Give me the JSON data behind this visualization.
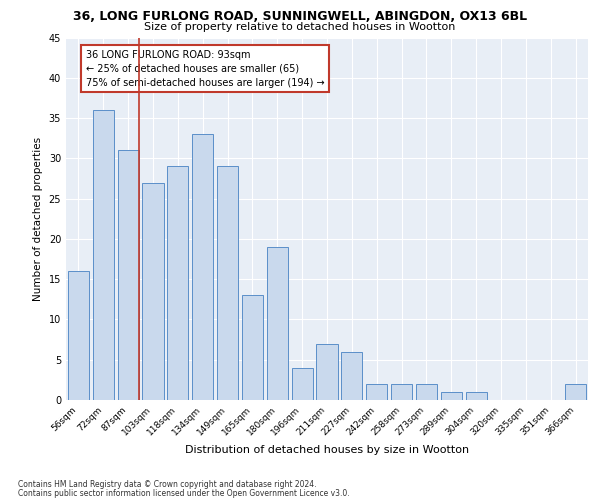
{
  "title": "36, LONG FURLONG ROAD, SUNNINGWELL, ABINGDON, OX13 6BL",
  "subtitle": "Size of property relative to detached houses in Wootton",
  "xlabel": "Distribution of detached houses by size in Wootton",
  "ylabel": "Number of detached properties",
  "categories": [
    "56sqm",
    "72sqm",
    "87sqm",
    "103sqm",
    "118sqm",
    "134sqm",
    "149sqm",
    "165sqm",
    "180sqm",
    "196sqm",
    "211sqm",
    "227sqm",
    "242sqm",
    "258sqm",
    "273sqm",
    "289sqm",
    "304sqm",
    "320sqm",
    "335sqm",
    "351sqm",
    "366sqm"
  ],
  "values": [
    16,
    36,
    31,
    27,
    29,
    33,
    29,
    13,
    19,
    4,
    7,
    6,
    2,
    2,
    2,
    1,
    1,
    0,
    0,
    0,
    2
  ],
  "bar_color": "#c9d9ed",
  "bar_edge_color": "#5b8fc9",
  "vline_x_index": 2,
  "vline_color": "#c0392b",
  "annotation_text": "36 LONG FURLONG ROAD: 93sqm\n← 25% of detached houses are smaller (65)\n75% of semi-detached houses are larger (194) →",
  "annotation_box_color": "#ffffff",
  "annotation_box_edge": "#c0392b",
  "ylim": [
    0,
    45
  ],
  "yticks": [
    0,
    5,
    10,
    15,
    20,
    25,
    30,
    35,
    40,
    45
  ],
  "footer1": "Contains HM Land Registry data © Crown copyright and database right 2024.",
  "footer2": "Contains public sector information licensed under the Open Government Licence v3.0.",
  "plot_bg": "#e8eef6"
}
